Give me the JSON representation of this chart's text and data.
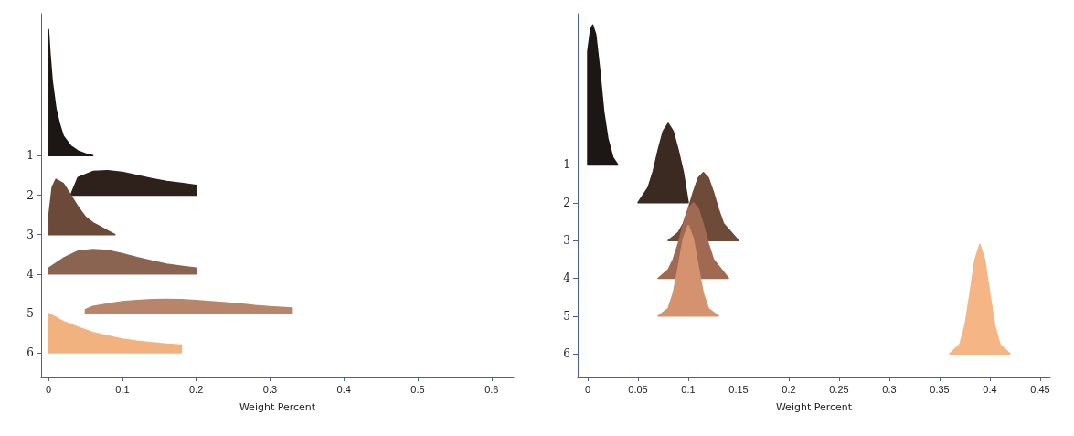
{
  "chart_data": [
    {
      "type": "area",
      "xlabel": "Weight Percent",
      "xlim": [
        -0.01,
        0.63
      ],
      "xticks": [
        0,
        0.1,
        0.2,
        0.3,
        0.4,
        0.5,
        0.6
      ],
      "ylim": [
        6.6,
        -2.6
      ],
      "yticks": [
        1,
        2,
        3,
        4,
        5,
        6
      ],
      "grid": false,
      "series": [
        {
          "color": "#1c1714",
          "x": [
            0,
            0,
            0.002,
            0.005,
            0.01,
            0.015,
            0.02,
            0.03,
            0.04,
            0.05,
            0.06
          ],
          "values": [
            1,
            -2.2,
            -1.6,
            -0.9,
            -0.2,
            0.2,
            0.5,
            0.75,
            0.88,
            0.95,
            1
          ]
        },
        {
          "color": "#2e201a",
          "x": [
            0.03,
            0.04,
            0.06,
            0.08,
            0.1,
            0.12,
            0.14,
            0.16,
            0.18,
            0.2,
            0.2
          ],
          "values": [
            2,
            1.55,
            1.4,
            1.38,
            1.42,
            1.5,
            1.58,
            1.65,
            1.7,
            1.75,
            2
          ]
        },
        {
          "color": "#6b4a3a",
          "x": [
            0,
            0,
            0.005,
            0.01,
            0.02,
            0.03,
            0.04,
            0.05,
            0.06,
            0.07,
            0.08,
            0.09
          ],
          "values": [
            3,
            2.6,
            1.8,
            1.6,
            1.7,
            2.0,
            2.3,
            2.55,
            2.7,
            2.8,
            2.9,
            3
          ]
        },
        {
          "color": "#8a6450",
          "x": [
            0,
            0,
            0.02,
            0.04,
            0.06,
            0.08,
            0.1,
            0.12,
            0.14,
            0.16,
            0.18,
            0.2,
            0.2
          ],
          "values": [
            4,
            3.85,
            3.6,
            3.42,
            3.38,
            3.4,
            3.48,
            3.58,
            3.67,
            3.75,
            3.8,
            3.85,
            4
          ]
        },
        {
          "color": "#b8856a",
          "x": [
            0.05,
            0.05,
            0.06,
            0.08,
            0.1,
            0.12,
            0.14,
            0.16,
            0.18,
            0.2,
            0.22,
            0.24,
            0.26,
            0.28,
            0.3,
            0.32,
            0.33,
            0.33
          ],
          "values": [
            5,
            4.9,
            4.82,
            4.76,
            4.7,
            4.67,
            4.65,
            4.64,
            4.65,
            4.67,
            4.7,
            4.73,
            4.76,
            4.8,
            4.83,
            4.85,
            4.86,
            5
          ]
        },
        {
          "color": "#f2b27f",
          "x": [
            0,
            0,
            0.02,
            0.04,
            0.06,
            0.08,
            0.1,
            0.12,
            0.14,
            0.16,
            0.18,
            0.18
          ],
          "values": [
            6,
            5,
            5.2,
            5.35,
            5.48,
            5.57,
            5.65,
            5.7,
            5.74,
            5.78,
            5.8,
            6
          ]
        }
      ]
    },
    {
      "type": "area",
      "xlabel": "Weight Percent",
      "xlim": [
        -0.01,
        0.46
      ],
      "xticks": [
        0,
        0.05,
        0.1,
        0.15,
        0.2,
        0.25,
        0.3,
        0.35,
        0.4,
        0.45
      ],
      "ylim": [
        6.6,
        -3
      ],
      "yticks": [
        1,
        2,
        3,
        4,
        5,
        6
      ],
      "grid": false,
      "series": [
        {
          "color": "#1c1714",
          "x": [
            0,
            0,
            0.003,
            0.005,
            0.008,
            0.012,
            0.016,
            0.02,
            0.025,
            0.03
          ],
          "values": [
            1,
            -2.0,
            -2.6,
            -2.7,
            -2.45,
            -1.5,
            -0.4,
            0.3,
            0.8,
            1
          ]
        },
        {
          "color": "#3a2a22",
          "x": [
            0.05,
            0.06,
            0.065,
            0.07,
            0.075,
            0.08,
            0.085,
            0.09,
            0.095,
            0.1
          ],
          "values": [
            2,
            1.6,
            1.18,
            0.61,
            0.11,
            -0.1,
            0.11,
            0.61,
            1.18,
            2
          ]
        },
        {
          "color": "#6e4a38",
          "x": [
            0.08,
            0.09,
            0.095,
            0.1,
            0.105,
            0.11,
            0.115,
            0.12,
            0.125,
            0.13,
            0.135,
            0.15
          ],
          "values": [
            3,
            2.79,
            2.55,
            2.17,
            1.72,
            1.34,
            1.2,
            1.34,
            1.72,
            2.17,
            2.55,
            3
          ]
        },
        {
          "color": "#a06a52",
          "x": [
            0.07,
            0.08,
            0.085,
            0.09,
            0.095,
            0.1,
            0.105,
            0.11,
            0.115,
            0.12,
            0.125,
            0.14
          ],
          "values": [
            4,
            3.77,
            3.5,
            3.08,
            2.58,
            2.16,
            2.0,
            2.16,
            2.58,
            3.08,
            3.5,
            4
          ]
        },
        {
          "color": "#d4926e",
          "x": [
            0.07,
            0.08,
            0.085,
            0.09,
            0.095,
            0.1,
            0.105,
            0.11,
            0.115,
            0.12,
            0.13
          ],
          "values": [
            5,
            4.8,
            4.4,
            3.7,
            2.95,
            2.6,
            2.95,
            3.7,
            4.4,
            4.8,
            5
          ]
        },
        {
          "color": "#f5b585",
          "x": [
            0.36,
            0.37,
            0.375,
            0.38,
            0.385,
            0.39,
            0.395,
            0.4,
            0.405,
            0.41,
            0.42
          ],
          "values": [
            6,
            5.75,
            5.27,
            4.43,
            3.52,
            3.1,
            3.52,
            4.43,
            5.27,
            5.75,
            6
          ]
        }
      ]
    }
  ]
}
